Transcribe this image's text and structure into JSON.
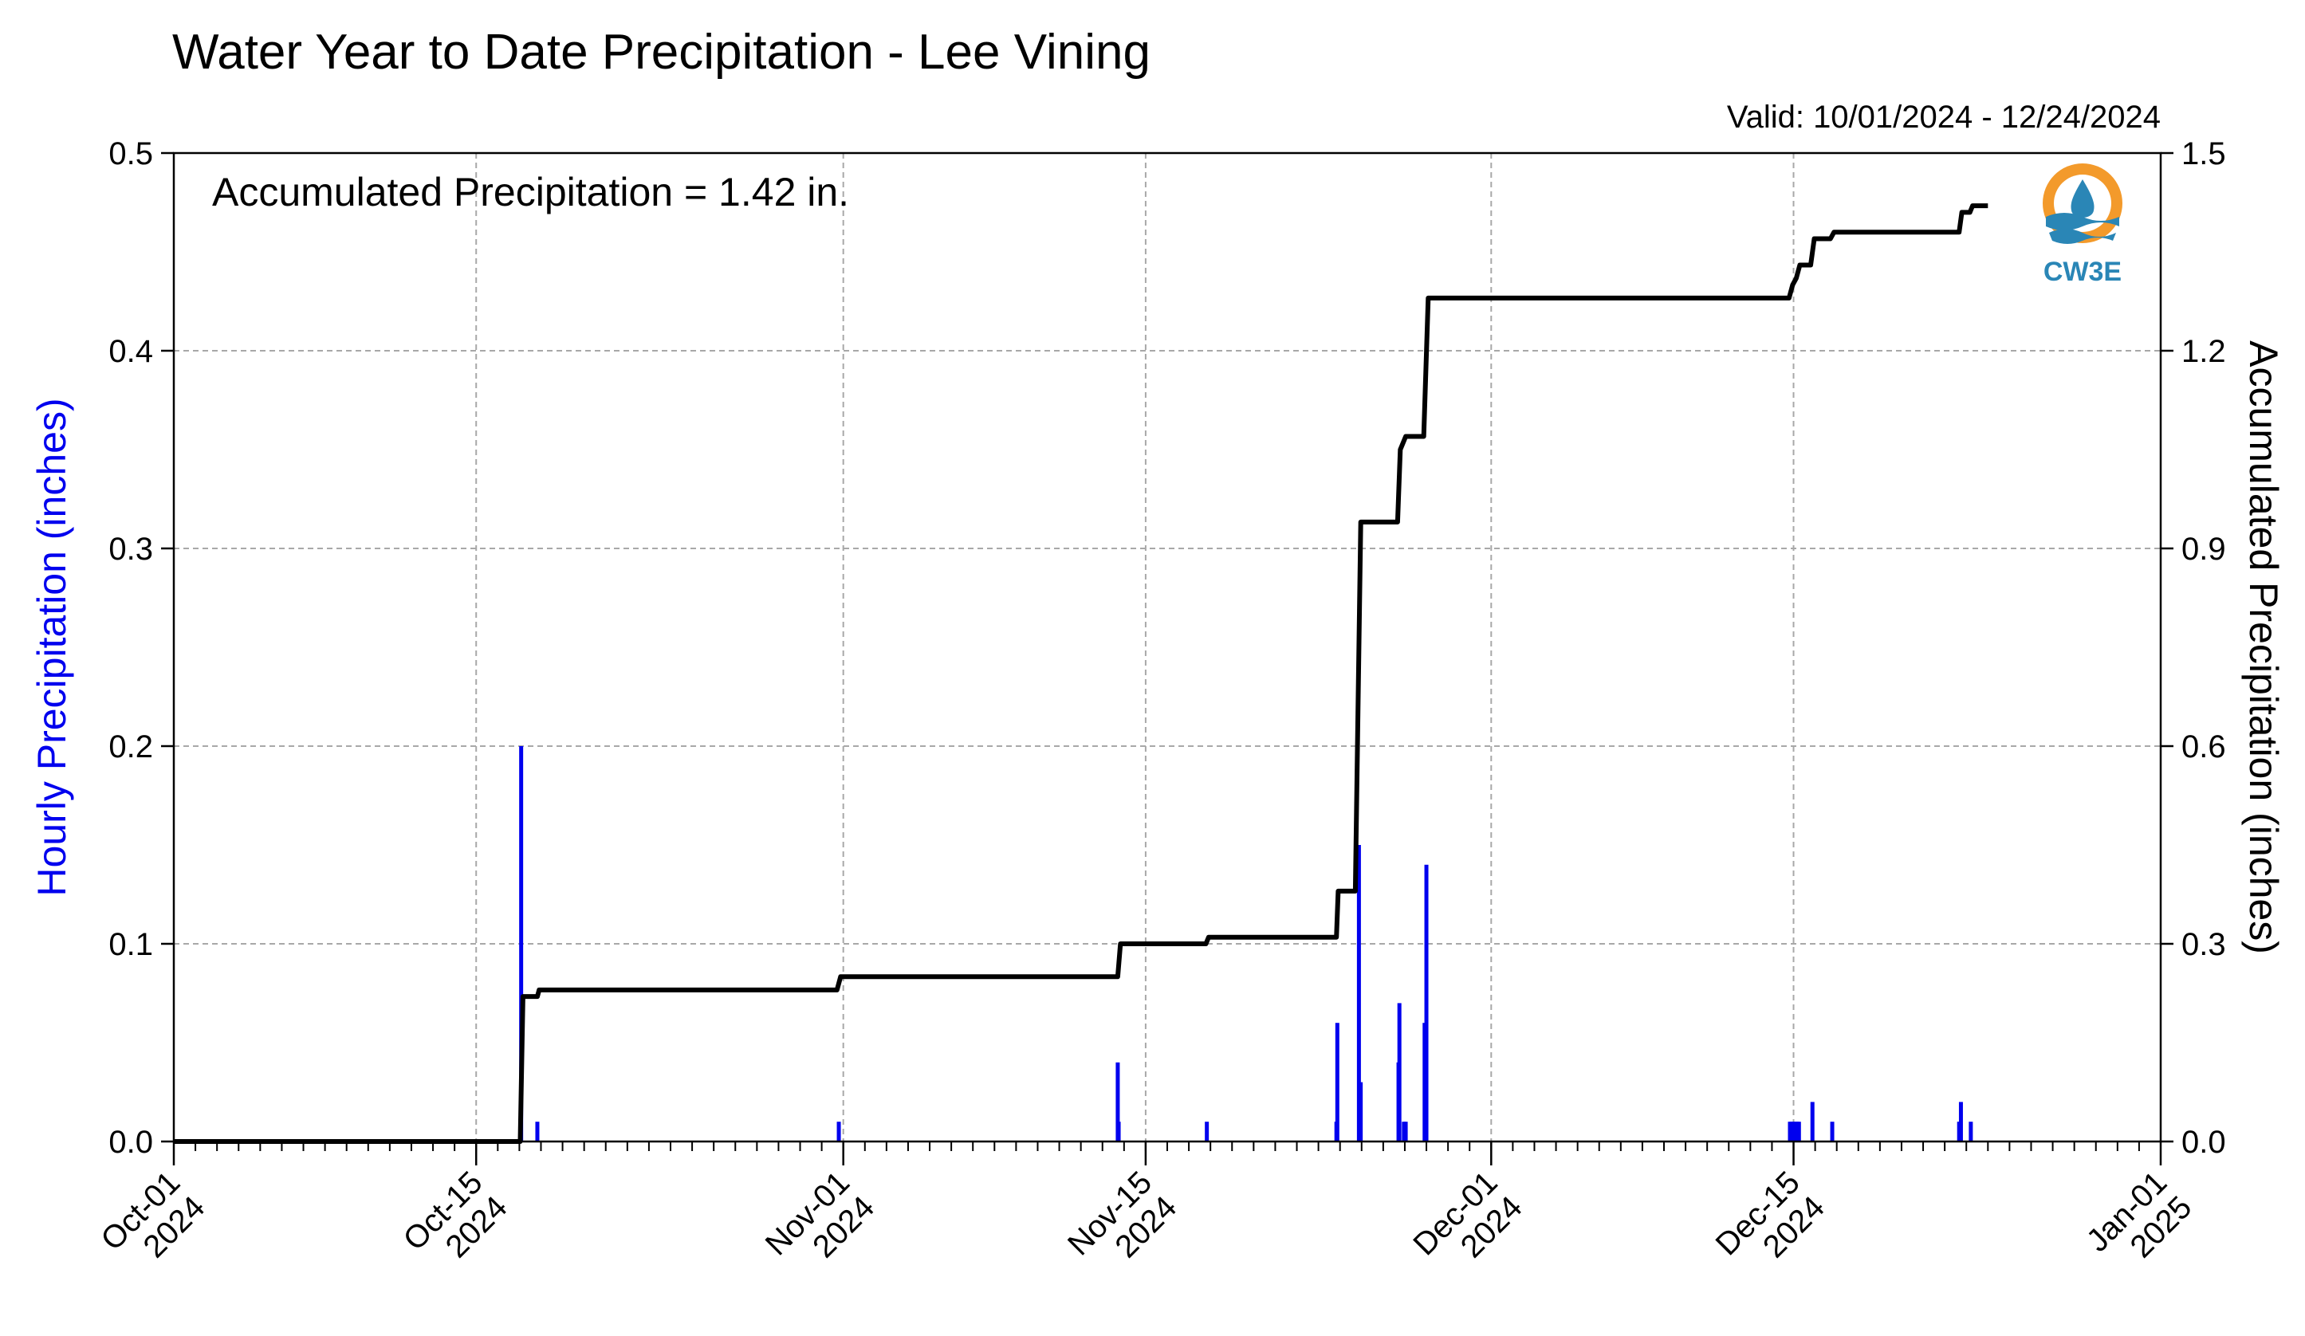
{
  "title": "Water Year to Date Precipitation - Lee Vining",
  "valid_text": "Valid: 10/01/2024 - 12/24/2024",
  "annotation": "Accumulated Precipitation = 1.42 in.",
  "logo_text": "CW3E",
  "colors": {
    "bars": "#0000ee",
    "line": "#000000",
    "left_axis_label": "#0000ee",
    "grid": "#a8a8a8",
    "logo_orange": "#f39a2b",
    "logo_blue": "#2a86b6"
  },
  "chart_data": {
    "type": "bar+line",
    "title": "Water Year to Date Precipitation - Lee Vining",
    "ylabel_left": "Hourly Precipitation (inches)",
    "ylabel_right": "Accumulated Precipitation (inches)",
    "ylim_left": [
      0,
      0.5
    ],
    "ylim_right": [
      0,
      1.5
    ],
    "xlim": [
      "2024-10-01",
      "2025-01-01"
    ],
    "grid": true,
    "y_ticks_left": [
      "0.0",
      "0.1",
      "0.2",
      "0.3",
      "0.4",
      "0.5"
    ],
    "y_ticks_right": [
      "0.0",
      "0.3",
      "0.6",
      "0.9",
      "1.2",
      "1.5"
    ],
    "x_ticks": [
      {
        "date": "2024-10-01",
        "line1": "Oct-01",
        "line2": "2024"
      },
      {
        "date": "2024-10-15",
        "line1": "Oct-15",
        "line2": "2024"
      },
      {
        "date": "2024-11-01",
        "line1": "Nov-01",
        "line2": "2024"
      },
      {
        "date": "2024-11-15",
        "line1": "Nov-15",
        "line2": "2024"
      },
      {
        "date": "2024-12-01",
        "line1": "Dec-01",
        "line2": "2024"
      },
      {
        "date": "2024-12-15",
        "line1": "Dec-15",
        "line2": "2024"
      },
      {
        "date": "2025-01-01",
        "line1": "Jan-01",
        "line2": "2025"
      }
    ],
    "series": [
      {
        "name": "Hourly Precipitation",
        "type": "bar",
        "axis": "left",
        "points": [
          [
            "2024-10-17T02:00",
            0.2
          ],
          [
            "2024-10-17T20:00",
            0.01
          ],
          [
            "2024-10-31T19:00",
            0.01
          ],
          [
            "2024-11-13T17:00",
            0.04
          ],
          [
            "2024-11-13T18:00",
            0.01
          ],
          [
            "2024-11-17T20:00",
            0.01
          ],
          [
            "2024-11-23T20:00",
            0.01
          ],
          [
            "2024-11-23T21:00",
            0.06
          ],
          [
            "2024-11-24T21:00",
            0.15
          ],
          [
            "2024-11-24T23:00",
            0.03
          ],
          [
            "2024-11-26T17:00",
            0.04
          ],
          [
            "2024-11-26T18:00",
            0.07
          ],
          [
            "2024-11-26T23:00",
            0.01
          ],
          [
            "2024-11-27T01:00",
            0.01
          ],
          [
            "2024-11-27T22:00",
            0.06
          ],
          [
            "2024-11-28T00:00",
            0.14
          ],
          [
            "2024-12-14T20:00",
            0.01
          ],
          [
            "2024-12-14T22:00",
            0.01
          ],
          [
            "2024-12-15T00:00",
            0.01
          ],
          [
            "2024-12-15T02:00",
            0.01
          ],
          [
            "2024-12-15T04:00",
            0.01
          ],
          [
            "2024-12-15T06:00",
            0.01
          ],
          [
            "2024-12-15T21:00",
            0.02
          ],
          [
            "2024-12-16T19:00",
            0.01
          ],
          [
            "2024-12-22T16:00",
            0.01
          ],
          [
            "2024-12-22T18:00",
            0.02
          ],
          [
            "2024-12-23T05:00",
            0.01
          ]
        ]
      },
      {
        "name": "Accumulated Precipitation",
        "type": "line",
        "axis": "right",
        "points": [
          [
            "2024-10-01T00:00",
            0.0
          ],
          [
            "2024-10-17T01:00",
            0.0
          ],
          [
            "2024-10-17T04:00",
            0.22
          ],
          [
            "2024-10-17T20:00",
            0.22
          ],
          [
            "2024-10-17T22:00",
            0.23
          ],
          [
            "2024-10-31T17:00",
            0.23
          ],
          [
            "2024-10-31T21:00",
            0.25
          ],
          [
            "2024-11-13T17:00",
            0.25
          ],
          [
            "2024-11-13T20:00",
            0.3
          ],
          [
            "2024-11-17T19:00",
            0.3
          ],
          [
            "2024-11-17T22:00",
            0.31
          ],
          [
            "2024-11-23T20:00",
            0.31
          ],
          [
            "2024-11-23T22:00",
            0.38
          ],
          [
            "2024-11-24T17:00",
            0.38
          ],
          [
            "2024-11-24T23:00",
            0.94
          ],
          [
            "2024-11-26T16:00",
            0.94
          ],
          [
            "2024-11-26T19:00",
            1.05
          ],
          [
            "2024-11-26T22:00",
            1.06
          ],
          [
            "2024-11-27T01:00",
            1.07
          ],
          [
            "2024-11-27T21:00",
            1.07
          ],
          [
            "2024-11-28T02:00",
            1.28
          ],
          [
            "2024-12-14T19:00",
            1.28
          ],
          [
            "2024-12-14T23:00",
            1.3
          ],
          [
            "2024-12-15T03:00",
            1.31
          ],
          [
            "2024-12-15T07:00",
            1.33
          ],
          [
            "2024-12-15T19:00",
            1.33
          ],
          [
            "2024-12-15T23:00",
            1.37
          ],
          [
            "2024-12-16T17:00",
            1.37
          ],
          [
            "2024-12-16T21:00",
            1.38
          ],
          [
            "2024-12-22T16:00",
            1.38
          ],
          [
            "2024-12-22T19:00",
            1.41
          ],
          [
            "2024-12-23T04:00",
            1.41
          ],
          [
            "2024-12-23T07:00",
            1.42
          ],
          [
            "2024-12-24T00:00",
            1.42
          ]
        ]
      }
    ]
  }
}
